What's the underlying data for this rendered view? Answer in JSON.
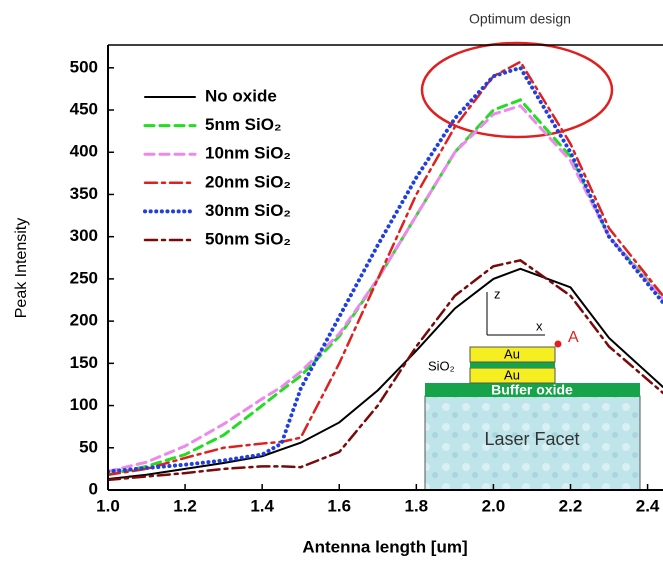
{
  "chart_data": {
    "type": "line",
    "x_label": "Antenna length [um]",
    "y_label": "Peak Intensity",
    "x": [
      1.0,
      1.1,
      1.2,
      1.3,
      1.4,
      1.45,
      1.5,
      1.6,
      1.7,
      1.8,
      1.9,
      2.0,
      2.07,
      2.2,
      2.3,
      2.44
    ],
    "series": [
      {
        "name": "No oxide",
        "color": "#000000",
        "dash": "solid",
        "values": [
          13,
          18,
          25,
          32,
          40,
          48,
          56,
          80,
          118,
          165,
          215,
          250,
          262,
          240,
          180,
          122
        ]
      },
      {
        "name": "5nm SiO₂",
        "color": "#22dd22",
        "dash": "dashed",
        "values": [
          18,
          28,
          42,
          65,
          100,
          118,
          135,
          182,
          250,
          325,
          400,
          450,
          462,
          395,
          300,
          228
        ]
      },
      {
        "name": "10nm SiO₂",
        "color": "#ee88ee",
        "dash": "dashed",
        "values": [
          22,
          33,
          52,
          78,
          108,
          122,
          140,
          185,
          250,
          325,
          400,
          445,
          455,
          390,
          300,
          226
        ]
      },
      {
        "name": "20nm SiO₂",
        "color": "#e02020",
        "dash": "dashdot",
        "values": [
          18,
          25,
          38,
          50,
          55,
          57,
          62,
          150,
          250,
          350,
          430,
          490,
          507,
          410,
          310,
          230
        ]
      },
      {
        "name": "30nm SiO₂",
        "color": "#1f3fe0",
        "dash": "dotted",
        "values": [
          22,
          26,
          30,
          35,
          42,
          55,
          120,
          205,
          290,
          370,
          440,
          490,
          500,
          400,
          300,
          222
        ]
      },
      {
        "name": "50nm SiO₂",
        "color": "#7a0a0a",
        "dash": "dashdot",
        "values": [
          12,
          16,
          20,
          25,
          28,
          28,
          27,
          45,
          100,
          170,
          230,
          265,
          272,
          230,
          170,
          115
        ]
      }
    ],
    "xlim": [
      1.0,
      2.44
    ],
    "ylim": [
      0,
      527
    ],
    "xticks": [
      {
        "value": 1.0,
        "label": "1.0"
      },
      1.2,
      1.4,
      1.6,
      1.8,
      {
        "value": 2.0,
        "label": "2.0"
      },
      2.2,
      2.4
    ],
    "yticks": [
      0,
      50,
      100,
      150,
      200,
      250,
      300,
      350,
      400,
      450,
      500
    ],
    "annotations": {
      "highlight": "Optimum design",
      "z_axis": "z",
      "x_axis": "x",
      "point": "A",
      "layer_gold_top": "Au",
      "layer_gold_bottom": "Au",
      "layer_oxide": "SiO₂",
      "buffer": "Buffer oxide",
      "substrate": "Laser Facet"
    }
  }
}
